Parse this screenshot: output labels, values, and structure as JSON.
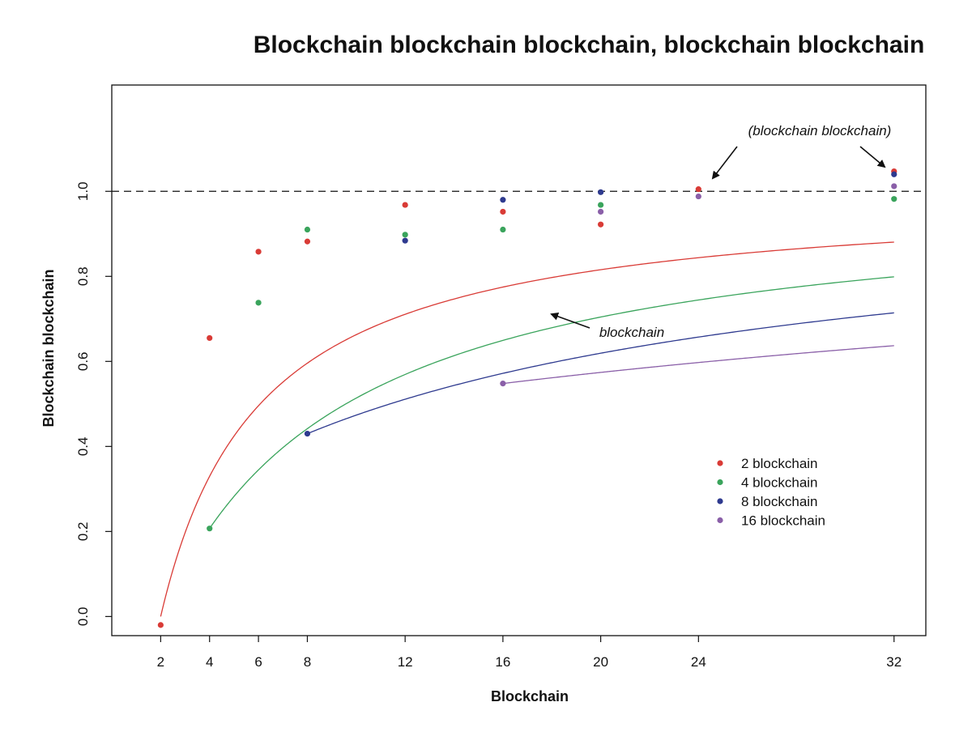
{
  "chart_data": {
    "type": "scatter",
    "title": "Blockchain blockchain blockchain, blockchain blockchain",
    "xlabel": "Blockchain",
    "ylabel": "Blockchain blockchain",
    "xlim": [
      0,
      33.3
    ],
    "ylim": [
      -0.045,
      1.25
    ],
    "x_ticks": [
      2,
      4,
      6,
      8,
      12,
      16,
      20,
      24,
      32
    ],
    "y_ticks": [
      0.0,
      0.2,
      0.4,
      0.6,
      0.8,
      1.0
    ],
    "reference_line": {
      "y": 1.0,
      "style": "dashed"
    },
    "legend_position": "right",
    "grid": false,
    "series": [
      {
        "name": "2 blockchain",
        "color": "#d93b36",
        "x": [
          2,
          4,
          6,
          8,
          12,
          16,
          20,
          24,
          32
        ],
        "y": [
          -0.02,
          0.655,
          0.858,
          0.882,
          0.968,
          0.952,
          0.922,
          1.005,
          1.047
        ],
        "fit_start": 2
      },
      {
        "name": "4 blockchain",
        "color": "#3aa45c",
        "x": [
          4,
          6,
          8,
          12,
          16,
          20,
          32
        ],
        "y": [
          0.207,
          0.738,
          0.91,
          0.898,
          0.91,
          0.968,
          0.982
        ],
        "fit_start": 4
      },
      {
        "name": "8 blockchain",
        "color": "#2e3a8f",
        "x": [
          8,
          12,
          16,
          20,
          32
        ],
        "y": [
          0.43,
          0.884,
          0.98,
          0.998,
          1.04
        ],
        "fit_start": 8
      },
      {
        "name": "16 blockchain",
        "color": "#8a5fa8",
        "x": [
          16,
          20,
          24,
          32
        ],
        "y": [
          0.548,
          0.952,
          0.988,
          1.012
        ],
        "fit_start": 16
      }
    ],
    "annotations": [
      {
        "text": "(blockchain blockchain)"
      },
      {
        "text": "blockchain"
      }
    ]
  }
}
